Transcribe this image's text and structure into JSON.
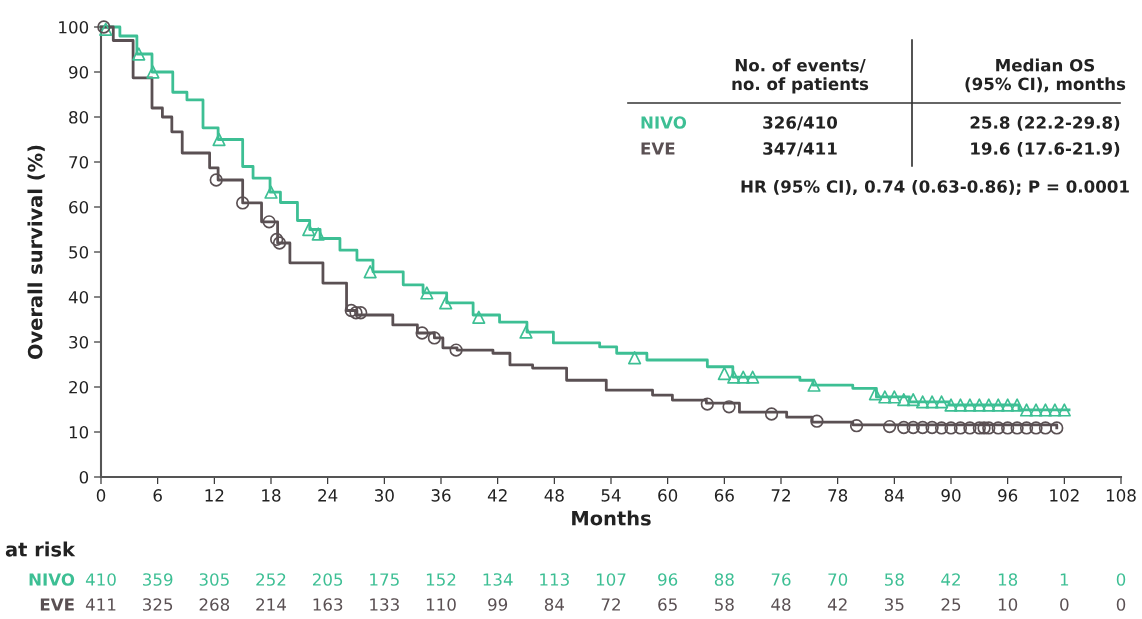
{
  "chart_data": {
    "type": "step",
    "xlabel": "Months",
    "ylabel": "Overall survival (%)",
    "xlim": [
      0,
      108
    ],
    "xticks": [
      0,
      6,
      12,
      18,
      24,
      30,
      36,
      42,
      48,
      54,
      60,
      66,
      72,
      78,
      84,
      90,
      96,
      102,
      108
    ],
    "ylim": [
      0,
      100
    ],
    "yticks": [
      0,
      10,
      20,
      30,
      40,
      50,
      60,
      70,
      80,
      90,
      100
    ],
    "grid": false,
    "legend": false,
    "series": [
      {
        "name": "NIVO",
        "color": "#3dbf94",
        "marker": "none",
        "x": [
          0,
          2,
          3.8,
          5.4,
          7.6,
          9.1,
          10.8,
          12.4,
          15,
          16.1,
          17.9,
          19,
          20.8,
          22.1,
          23.2,
          25.3,
          27.1,
          28.8,
          32,
          34.1,
          36.6,
          39.4,
          42.2,
          45.1,
          47.9,
          52.8,
          54.6,
          57.8,
          64.2,
          66.9,
          74,
          75.4,
          78.6,
          79.6,
          82.1,
          85.6,
          89.8,
          97.2,
          102.5
        ],
        "values": [
          100,
          98,
          94,
          90,
          85.5,
          83.8,
          77.6,
          75,
          69,
          66.4,
          63.3,
          61,
          57,
          55,
          53,
          50.4,
          48.2,
          45.6,
          42.7,
          40.9,
          38.7,
          36,
          34.4,
          32.2,
          29.8,
          28.9,
          27.5,
          26,
          24.5,
          22.2,
          21.5,
          20.4,
          20.4,
          19.7,
          17.8,
          16.7,
          16,
          14.9,
          14.9
        ]
      },
      {
        "name": "EVE",
        "color": "#5a5053",
        "marker": "none",
        "x": [
          0,
          1.3,
          3.4,
          5.4,
          6.5,
          7.5,
          8.6,
          9.4,
          11.5,
          12.4,
          15,
          17,
          18.7,
          20,
          23.5,
          26,
          27.1,
          29.5,
          30.9,
          33.5,
          35.3,
          36.2,
          37.7,
          41.5,
          43.3,
          45.7,
          49.3,
          53.5,
          58.4,
          60.5,
          64.1,
          67.6,
          72.6,
          75.3,
          79.6,
          101.2
        ],
        "values": [
          100,
          97,
          88.7,
          82,
          80,
          76.7,
          72,
          72,
          68.7,
          66,
          60.9,
          56.7,
          52,
          47.6,
          43.1,
          37,
          36,
          36,
          33.8,
          32,
          30.9,
          28.7,
          28.2,
          27.5,
          24.9,
          24.2,
          21.5,
          19.3,
          18.2,
          17.1,
          16.4,
          14.4,
          13.3,
          12.2,
          11.6,
          10.9
        ]
      },
      {
        "color": "#3dbf94",
        "type": "scatter",
        "marker": "triangle",
        "x": [
          0.5,
          4,
          5.5,
          12.5,
          18,
          22,
          23,
          28.5,
          34.5,
          36.5,
          40,
          45,
          56.5,
          66,
          67,
          68,
          69,
          75.5,
          82,
          83,
          84,
          85,
          86,
          87,
          88,
          89,
          90,
          91,
          92,
          93,
          94,
          95,
          96,
          97,
          98,
          99,
          100,
          101,
          102
        ],
        "values": [
          99.5,
          94,
          90,
          75,
          63.3,
          55,
          54,
          45.6,
          40.9,
          38.7,
          35.5,
          32.2,
          26.5,
          23,
          22.2,
          22.2,
          22.2,
          20.4,
          18.5,
          17.8,
          17.8,
          17.2,
          17.2,
          16.7,
          16.7,
          16.7,
          16,
          16,
          16,
          16,
          16,
          16,
          16,
          16,
          14.9,
          14.9,
          14.9,
          14.9,
          14.9
        ]
      },
      {
        "color": "#5a5053",
        "type": "scatter",
        "marker": "circle",
        "x": [
          0.3,
          12.2,
          15,
          17.8,
          18.6,
          18.9,
          26.5,
          27,
          27.5,
          34,
          35.3,
          37.6,
          64.2,
          66.5,
          71,
          75.8,
          80,
          83.5,
          85,
          86,
          87,
          88,
          89,
          90,
          91,
          92,
          93,
          93.5,
          94,
          95,
          96,
          97,
          98,
          99,
          100,
          101.2
        ],
        "values": [
          100,
          66,
          60.9,
          56.7,
          52.8,
          52,
          37,
          36.5,
          36.5,
          32,
          30.9,
          28.2,
          16.2,
          15.6,
          14,
          12.4,
          11.4,
          11.2,
          11,
          11,
          11,
          11,
          10.9,
          10.9,
          10.9,
          10.9,
          10.9,
          10.9,
          10.9,
          10.9,
          10.9,
          10.9,
          10.9,
          10.9,
          10.9,
          10.9
        ]
      }
    ],
    "annotations": [
      "No. of events/\nno. of patients",
      "Median OS\n(95% CI), months",
      "326/410",
      "25.8 (22.2-29.8)",
      "347/411",
      "19.6 (17.6-21.9)",
      "HR (95% CI), 0.74 (0.63-0.86); P = 0.0001",
      "at risk",
      "410",
      "359",
      "305",
      "252",
      "205",
      "175",
      "152",
      "134",
      "113",
      "107",
      "96",
      "88",
      "76",
      "70",
      "58",
      "42",
      "18",
      "1",
      "0",
      "411",
      "325",
      "268",
      "214",
      "163",
      "133",
      "110",
      "99",
      "84",
      "72",
      "65",
      "58",
      "48",
      "42",
      "35",
      "25",
      "10",
      "0",
      "0"
    ]
  }
}
